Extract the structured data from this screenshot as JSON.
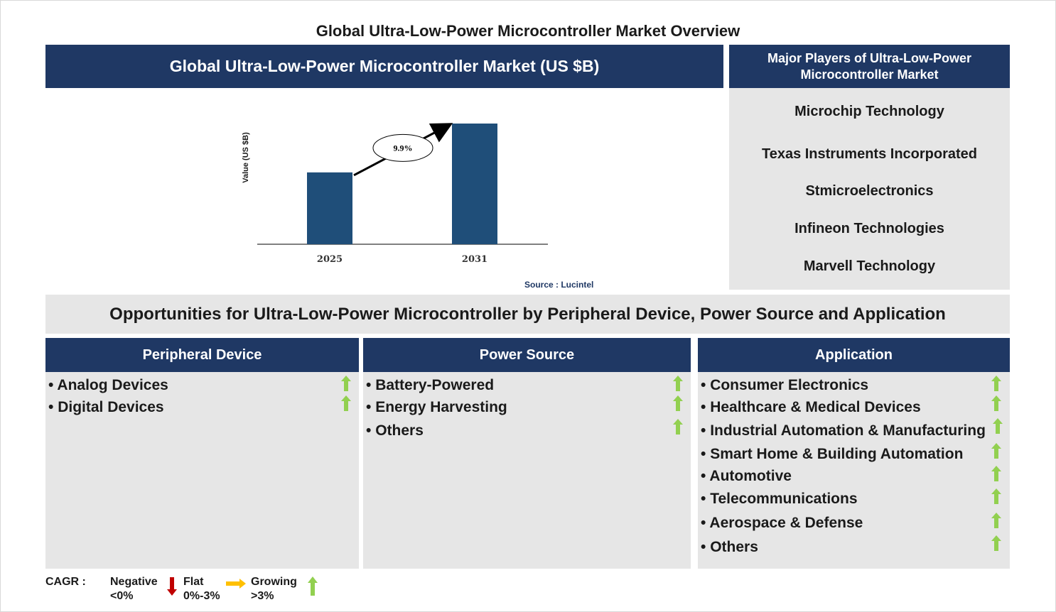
{
  "title": "Global Ultra-Low-Power Microcontroller Market Overview",
  "chart_header": "Global Ultra-Low-Power Microcontroller Market (US $B)",
  "players_header": "Major Players of Ultra-Low-Power Microcontroller Market",
  "players": [
    "Microchip Technology",
    "Texas Instruments Incorporated",
    "Stmicroelectronics",
    "Infineon Technologies",
    "Marvell Technology"
  ],
  "chart_data": {
    "type": "bar",
    "categories": [
      "2025",
      "2031"
    ],
    "values": [
      1.0,
      1.68
    ],
    "ylabel": "Value (US $B)",
    "annotation": "9.9%",
    "source": "Source : Lucintel",
    "color": "#1f4e79"
  },
  "opportunities_title": "Opportunities for Ultra-Low-Power Microcontroller by Peripheral Device, Power Source and Application",
  "segments": [
    {
      "title": "Peripheral Device",
      "items": [
        "Analog Devices",
        "Digital Devices"
      ],
      "trend": "growing"
    },
    {
      "title": "Power Source",
      "items": [
        "Battery-Powered",
        "Energy Harvesting",
        "Others"
      ],
      "trend": "growing"
    },
    {
      "title": "Application",
      "items": [
        "Consumer Electronics",
        "Healthcare & Medical Devices",
        "Industrial Automation & Manufacturing",
        "Smart Home & Building Automation",
        "Automotive",
        "Telecommunications",
        "Aerospace & Defense",
        "Others"
      ],
      "trend": "growing"
    }
  ],
  "legend": {
    "label": "CAGR  :",
    "negative": {
      "label": "Negative",
      "range": "<0%",
      "color": "#c00000"
    },
    "flat": {
      "label": "Flat",
      "range": "0%-3%",
      "color": "#ffc000"
    },
    "growing": {
      "label": "Growing",
      "range": ">3%",
      "color": "#92d050"
    }
  }
}
